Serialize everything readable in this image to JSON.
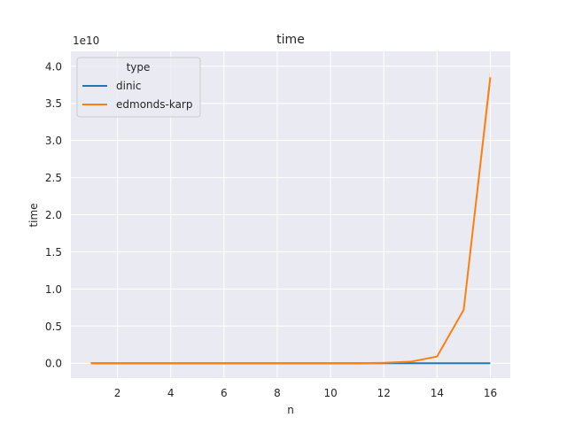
{
  "chart_data": {
    "type": "line",
    "title": "time",
    "xlabel": "n",
    "ylabel": "time",
    "y_multiplier_label": "1e10",
    "xlim": [
      0.25,
      16.75
    ],
    "ylim": [
      -0.2,
      4.2
    ],
    "x_ticks": [
      2,
      4,
      6,
      8,
      10,
      12,
      14,
      16
    ],
    "x_tick_labels": [
      "2",
      "4",
      "6",
      "8",
      "10",
      "12",
      "14",
      "16"
    ],
    "y_ticks": [
      0.0,
      0.5,
      1.0,
      1.5,
      2.0,
      2.5,
      3.0,
      3.5,
      4.0
    ],
    "y_tick_labels": [
      "0.0",
      "0.5",
      "1.0",
      "1.5",
      "2.0",
      "2.5",
      "3.0",
      "3.5",
      "4.0"
    ],
    "grid": true,
    "background": "#eaeaf2",
    "legend": {
      "title": "type",
      "placement": "top-left"
    },
    "x": [
      1,
      2,
      3,
      4,
      5,
      6,
      7,
      8,
      9,
      10,
      11,
      12,
      13,
      14,
      15,
      16
    ],
    "series": [
      {
        "name": "dinic",
        "color": "#1f77b4",
        "values": [
          0,
          0,
          0,
          0,
          0,
          0,
          0,
          0,
          0,
          0,
          0,
          0,
          0,
          0,
          0,
          0
        ]
      },
      {
        "name": "edmonds-karp",
        "color": "#ff7f0e",
        "values": [
          0,
          0,
          0,
          0,
          0,
          0,
          0,
          0,
          0,
          0,
          0,
          0.005,
          0.02,
          0.09,
          0.72,
          3.85
        ],
        "band_lower": [
          0,
          0,
          0,
          0,
          0,
          0,
          0,
          0,
          0,
          0,
          0,
          0.004,
          0.018,
          0.085,
          0.7,
          3.7
        ],
        "band_upper": [
          0,
          0,
          0,
          0,
          0,
          0,
          0,
          0,
          0,
          0,
          0,
          0.006,
          0.022,
          0.095,
          0.74,
          4.0
        ]
      }
    ]
  }
}
